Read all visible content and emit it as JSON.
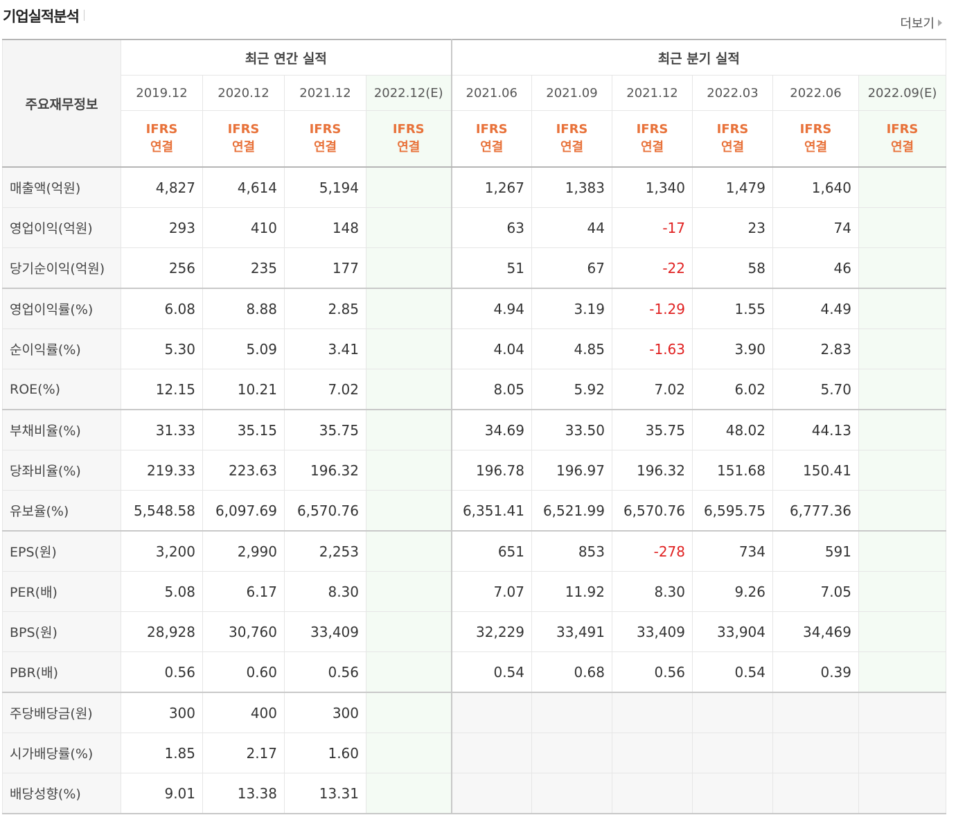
{
  "header": {
    "title": "기업실적분석",
    "more_label": "더보기"
  },
  "table": {
    "corner_label": "주요재무정보",
    "annual_group_label": "최근 연간 실적",
    "quarter_group_label": "최근 분기 실적",
    "annual_periods": [
      "2019.12",
      "2020.12",
      "2021.12",
      "2022.12(E)"
    ],
    "quarter_periods": [
      "2021.06",
      "2021.09",
      "2021.12",
      "2022.03",
      "2022.06",
      "2022.09(E)"
    ],
    "basis_line1": "IFRS",
    "basis_line2": "연결",
    "rows": [
      {
        "label": "매출액(억원)",
        "annual": [
          "4,827",
          "4,614",
          "5,194",
          ""
        ],
        "quarter": [
          "1,267",
          "1,383",
          "1,340",
          "1,479",
          "1,640",
          ""
        ]
      },
      {
        "label": "영업이익(억원)",
        "annual": [
          "293",
          "410",
          "148",
          ""
        ],
        "quarter": [
          "63",
          "44",
          "-17",
          "23",
          "74",
          ""
        ]
      },
      {
        "label": "당기순이익(억원)",
        "annual": [
          "256",
          "235",
          "177",
          ""
        ],
        "quarter": [
          "51",
          "67",
          "-22",
          "58",
          "46",
          ""
        ]
      },
      {
        "label": "영업이익률(%)",
        "annual": [
          "6.08",
          "8.88",
          "2.85",
          ""
        ],
        "quarter": [
          "4.94",
          "3.19",
          "-1.29",
          "1.55",
          "4.49",
          ""
        ]
      },
      {
        "label": "순이익률(%)",
        "annual": [
          "5.30",
          "5.09",
          "3.41",
          ""
        ],
        "quarter": [
          "4.04",
          "4.85",
          "-1.63",
          "3.90",
          "2.83",
          ""
        ]
      },
      {
        "label": "ROE(%)",
        "annual": [
          "12.15",
          "10.21",
          "7.02",
          ""
        ],
        "quarter": [
          "8.05",
          "5.92",
          "7.02",
          "6.02",
          "5.70",
          ""
        ]
      },
      {
        "label": "부채비율(%)",
        "annual": [
          "31.33",
          "35.15",
          "35.75",
          ""
        ],
        "quarter": [
          "34.69",
          "33.50",
          "35.75",
          "48.02",
          "44.13",
          ""
        ]
      },
      {
        "label": "당좌비율(%)",
        "annual": [
          "219.33",
          "223.63",
          "196.32",
          ""
        ],
        "quarter": [
          "196.78",
          "196.97",
          "196.32",
          "151.68",
          "150.41",
          ""
        ]
      },
      {
        "label": "유보율(%)",
        "annual": [
          "5,548.58",
          "6,097.69",
          "6,570.76",
          ""
        ],
        "quarter": [
          "6,351.41",
          "6,521.99",
          "6,570.76",
          "6,595.75",
          "6,777.36",
          ""
        ]
      },
      {
        "label": "EPS(원)",
        "annual": [
          "3,200",
          "2,990",
          "2,253",
          ""
        ],
        "quarter": [
          "651",
          "853",
          "-278",
          "734",
          "591",
          ""
        ]
      },
      {
        "label": "PER(배)",
        "annual": [
          "5.08",
          "6.17",
          "8.30",
          ""
        ],
        "quarter": [
          "7.07",
          "11.92",
          "8.30",
          "9.26",
          "7.05",
          ""
        ]
      },
      {
        "label": "BPS(원)",
        "annual": [
          "28,928",
          "30,760",
          "33,409",
          ""
        ],
        "quarter": [
          "32,229",
          "33,491",
          "33,409",
          "33,904",
          "34,469",
          ""
        ]
      },
      {
        "label": "PBR(배)",
        "annual": [
          "0.56",
          "0.60",
          "0.56",
          ""
        ],
        "quarter": [
          "0.54",
          "0.68",
          "0.56",
          "0.54",
          "0.39",
          ""
        ]
      },
      {
        "label": "주당배당금(원)",
        "annual": [
          "300",
          "400",
          "300",
          ""
        ],
        "quarter": [
          "",
          "",
          "",
          "",
          "",
          ""
        ]
      },
      {
        "label": "시가배당률(%)",
        "annual": [
          "1.85",
          "2.17",
          "1.60",
          ""
        ],
        "quarter": [
          "",
          "",
          "",
          "",
          "",
          ""
        ]
      },
      {
        "label": "배당성향(%)",
        "annual": [
          "9.01",
          "13.38",
          "13.31",
          ""
        ],
        "quarter": [
          "",
          "",
          "",
          "",
          "",
          ""
        ]
      }
    ]
  }
}
